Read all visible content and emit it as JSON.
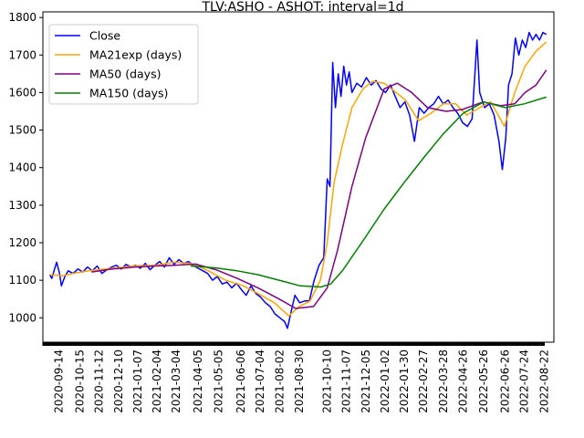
{
  "chart_data": {
    "type": "line",
    "title": "TLV:ASHO - ASHOT: interval=1d",
    "xlabel": "",
    "ylabel": "",
    "ylim": [
      935,
      1815
    ],
    "yticks": [
      1000,
      1100,
      1200,
      1300,
      1400,
      1500,
      1600,
      1700,
      1800
    ],
    "xlim": [
      "2020-08-22",
      "2022-09-05"
    ],
    "xticks": [
      "2020-09-14",
      "2020-10-15",
      "2020-11-12",
      "2020-12-10",
      "2021-01-07",
      "2021-02-04",
      "2021-03-04",
      "2021-04-05",
      "2021-05-05",
      "2021-06-06",
      "2021-07-04",
      "2021-08-02",
      "2021-08-30",
      "2021-10-10",
      "2021-11-07",
      "2021-12-05",
      "2022-01-02",
      "2022-01-30",
      "2022-02-27",
      "2022-03-28",
      "2022-04-26",
      "2022-05-26",
      "2022-06-26",
      "2022-07-24",
      "2022-08-22"
    ],
    "grid": false,
    "legend_position": "top-left",
    "series": [
      {
        "name": "Close",
        "color": "#0000ff",
        "points": [
          [
            "2020-09-01",
            1115
          ],
          [
            "2020-09-04",
            1105
          ],
          [
            "2020-09-08",
            1130
          ],
          [
            "2020-09-11",
            1148
          ],
          [
            "2020-09-15",
            1120
          ],
          [
            "2020-09-18",
            1085
          ],
          [
            "2020-09-23",
            1110
          ],
          [
            "2020-09-28",
            1125
          ],
          [
            "2020-10-05",
            1118
          ],
          [
            "2020-10-12",
            1130
          ],
          [
            "2020-10-19",
            1122
          ],
          [
            "2020-10-26",
            1135
          ],
          [
            "2020-11-02",
            1125
          ],
          [
            "2020-11-09",
            1138
          ],
          [
            "2020-11-16",
            1118
          ],
          [
            "2020-11-23",
            1128
          ],
          [
            "2020-11-30",
            1135
          ],
          [
            "2020-12-07",
            1140
          ],
          [
            "2020-12-14",
            1130
          ],
          [
            "2020-12-21",
            1142
          ],
          [
            "2020-12-28",
            1136
          ],
          [
            "2021-01-04",
            1140
          ],
          [
            "2021-01-11",
            1132
          ],
          [
            "2021-01-18",
            1145
          ],
          [
            "2021-01-25",
            1128
          ],
          [
            "2021-02-01",
            1140
          ],
          [
            "2021-02-08",
            1150
          ],
          [
            "2021-02-15",
            1135
          ],
          [
            "2021-02-22",
            1160
          ],
          [
            "2021-03-01",
            1142
          ],
          [
            "2021-03-08",
            1155
          ],
          [
            "2021-03-15",
            1145
          ],
          [
            "2021-03-22",
            1150
          ],
          [
            "2021-03-29",
            1140
          ],
          [
            "2021-04-05",
            1132
          ],
          [
            "2021-04-12",
            1125
          ],
          [
            "2021-04-19",
            1118
          ],
          [
            "2021-04-26",
            1100
          ],
          [
            "2021-05-03",
            1110
          ],
          [
            "2021-05-10",
            1090
          ],
          [
            "2021-05-17",
            1095
          ],
          [
            "2021-05-24",
            1080
          ],
          [
            "2021-05-31",
            1092
          ],
          [
            "2021-06-07",
            1075
          ],
          [
            "2021-06-14",
            1060
          ],
          [
            "2021-06-21",
            1085
          ],
          [
            "2021-06-28",
            1065
          ],
          [
            "2021-07-05",
            1055
          ],
          [
            "2021-07-12",
            1040
          ],
          [
            "2021-07-19",
            1030
          ],
          [
            "2021-07-26",
            1010
          ],
          [
            "2021-08-02",
            1000
          ],
          [
            "2021-08-09",
            990
          ],
          [
            "2021-08-13",
            972
          ],
          [
            "2021-08-17",
            1005
          ],
          [
            "2021-08-24",
            1060
          ],
          [
            "2021-08-31",
            1040
          ],
          [
            "2021-09-07",
            1045
          ],
          [
            "2021-09-14",
            1045
          ],
          [
            "2021-09-21",
            1100
          ],
          [
            "2021-09-28",
            1140
          ],
          [
            "2021-10-05",
            1160
          ],
          [
            "2021-10-10",
            1370
          ],
          [
            "2021-10-14",
            1350
          ],
          [
            "2021-10-18",
            1680
          ],
          [
            "2021-10-22",
            1560
          ],
          [
            "2021-10-26",
            1650
          ],
          [
            "2021-10-30",
            1590
          ],
          [
            "2021-11-03",
            1670
          ],
          [
            "2021-11-07",
            1620
          ],
          [
            "2021-11-11",
            1655
          ],
          [
            "2021-11-15",
            1600
          ],
          [
            "2021-11-22",
            1625
          ],
          [
            "2021-11-29",
            1615
          ],
          [
            "2021-12-06",
            1640
          ],
          [
            "2021-12-13",
            1620
          ],
          [
            "2021-12-20",
            1632
          ],
          [
            "2021-12-27",
            1610
          ],
          [
            "2022-01-03",
            1600
          ],
          [
            "2022-01-10",
            1620
          ],
          [
            "2022-01-17",
            1590
          ],
          [
            "2022-01-24",
            1560
          ],
          [
            "2022-01-31",
            1575
          ],
          [
            "2022-02-07",
            1540
          ],
          [
            "2022-02-14",
            1470
          ],
          [
            "2022-02-21",
            1560
          ],
          [
            "2022-02-28",
            1545
          ],
          [
            "2022-03-07",
            1560
          ],
          [
            "2022-03-14",
            1570
          ],
          [
            "2022-03-21",
            1590
          ],
          [
            "2022-03-28",
            1570
          ],
          [
            "2022-04-04",
            1580
          ],
          [
            "2022-04-11",
            1560
          ],
          [
            "2022-04-18",
            1545
          ],
          [
            "2022-04-25",
            1520
          ],
          [
            "2022-05-02",
            1510
          ],
          [
            "2022-05-09",
            1530
          ],
          [
            "2022-05-16",
            1740
          ],
          [
            "2022-05-20",
            1600
          ],
          [
            "2022-05-27",
            1560
          ],
          [
            "2022-06-03",
            1570
          ],
          [
            "2022-06-10",
            1540
          ],
          [
            "2022-06-17",
            1470
          ],
          [
            "2022-06-22",
            1395
          ],
          [
            "2022-06-27",
            1480
          ],
          [
            "2022-07-01",
            1620
          ],
          [
            "2022-07-06",
            1650
          ],
          [
            "2022-07-11",
            1745
          ],
          [
            "2022-07-16",
            1700
          ],
          [
            "2022-07-21",
            1740
          ],
          [
            "2022-07-26",
            1720
          ],
          [
            "2022-07-31",
            1760
          ],
          [
            "2022-08-05",
            1740
          ],
          [
            "2022-08-10",
            1755
          ],
          [
            "2022-08-15",
            1740
          ],
          [
            "2022-08-20",
            1760
          ],
          [
            "2022-08-25",
            1755
          ]
        ]
      },
      {
        "name": "MA21exp (days)",
        "color": "#ffa500",
        "points": [
          [
            "2020-09-01",
            1115
          ],
          [
            "2020-09-20",
            1112
          ],
          [
            "2020-10-10",
            1120
          ],
          [
            "2020-11-01",
            1126
          ],
          [
            "2020-12-01",
            1132
          ],
          [
            "2021-01-01",
            1138
          ],
          [
            "2021-02-01",
            1140
          ],
          [
            "2021-03-01",
            1148
          ],
          [
            "2021-03-25",
            1145
          ],
          [
            "2021-04-20",
            1125
          ],
          [
            "2021-05-15",
            1100
          ],
          [
            "2021-06-10",
            1085
          ],
          [
            "2021-07-01",
            1065
          ],
          [
            "2021-07-25",
            1040
          ],
          [
            "2021-08-15",
            1005
          ],
          [
            "2021-08-30",
            1030
          ],
          [
            "2021-09-15",
            1045
          ],
          [
            "2021-09-30",
            1100
          ],
          [
            "2021-10-10",
            1200
          ],
          [
            "2021-10-20",
            1360
          ],
          [
            "2021-11-01",
            1460
          ],
          [
            "2021-11-15",
            1560
          ],
          [
            "2021-12-01",
            1610
          ],
          [
            "2021-12-15",
            1630
          ],
          [
            "2022-01-01",
            1625
          ],
          [
            "2022-01-15",
            1605
          ],
          [
            "2022-02-01",
            1580
          ],
          [
            "2022-02-20",
            1525
          ],
          [
            "2022-03-10",
            1545
          ],
          [
            "2022-03-28",
            1570
          ],
          [
            "2022-04-15",
            1570
          ],
          [
            "2022-05-01",
            1540
          ],
          [
            "2022-05-20",
            1560
          ],
          [
            "2022-06-05",
            1575
          ],
          [
            "2022-06-25",
            1510
          ],
          [
            "2022-07-10",
            1600
          ],
          [
            "2022-07-25",
            1670
          ],
          [
            "2022-08-10",
            1710
          ],
          [
            "2022-08-25",
            1735
          ]
        ]
      },
      {
        "name": "MA50 (days)",
        "color": "#800080",
        "points": [
          [
            "2020-11-01",
            1122
          ],
          [
            "2020-12-01",
            1130
          ],
          [
            "2021-01-01",
            1135
          ],
          [
            "2021-02-01",
            1138
          ],
          [
            "2021-03-01",
            1140
          ],
          [
            "2021-04-01",
            1143
          ],
          [
            "2021-05-01",
            1128
          ],
          [
            "2021-06-01",
            1105
          ],
          [
            "2021-07-01",
            1080
          ],
          [
            "2021-08-01",
            1050
          ],
          [
            "2021-08-25",
            1025
          ],
          [
            "2021-09-20",
            1030
          ],
          [
            "2021-10-10",
            1080
          ],
          [
            "2021-10-25",
            1180
          ],
          [
            "2021-11-15",
            1350
          ],
          [
            "2021-12-05",
            1480
          ],
          [
            "2022-01-01",
            1610
          ],
          [
            "2022-01-20",
            1625
          ],
          [
            "2022-02-10",
            1600
          ],
          [
            "2022-03-05",
            1560
          ],
          [
            "2022-04-01",
            1550
          ],
          [
            "2022-04-25",
            1555
          ],
          [
            "2022-05-25",
            1575
          ],
          [
            "2022-06-20",
            1565
          ],
          [
            "2022-07-10",
            1570
          ],
          [
            "2022-07-25",
            1600
          ],
          [
            "2022-08-10",
            1620
          ],
          [
            "2022-08-25",
            1660
          ]
        ]
      },
      {
        "name": "MA150 (days)",
        "color": "#008000",
        "points": [
          [
            "2021-03-25",
            1138
          ],
          [
            "2021-05-01",
            1133
          ],
          [
            "2021-06-01",
            1125
          ],
          [
            "2021-07-01",
            1115
          ],
          [
            "2021-08-01",
            1100
          ],
          [
            "2021-09-01",
            1085
          ],
          [
            "2021-10-01",
            1082
          ],
          [
            "2021-10-15",
            1090
          ],
          [
            "2021-11-01",
            1125
          ],
          [
            "2021-12-01",
            1205
          ],
          [
            "2022-01-01",
            1290
          ],
          [
            "2022-02-01",
            1365
          ],
          [
            "2022-03-01",
            1430
          ],
          [
            "2022-03-28",
            1490
          ],
          [
            "2022-04-26",
            1545
          ],
          [
            "2022-05-26",
            1575
          ],
          [
            "2022-06-26",
            1560
          ],
          [
            "2022-07-24",
            1570
          ],
          [
            "2022-08-25",
            1588
          ]
        ]
      }
    ]
  }
}
